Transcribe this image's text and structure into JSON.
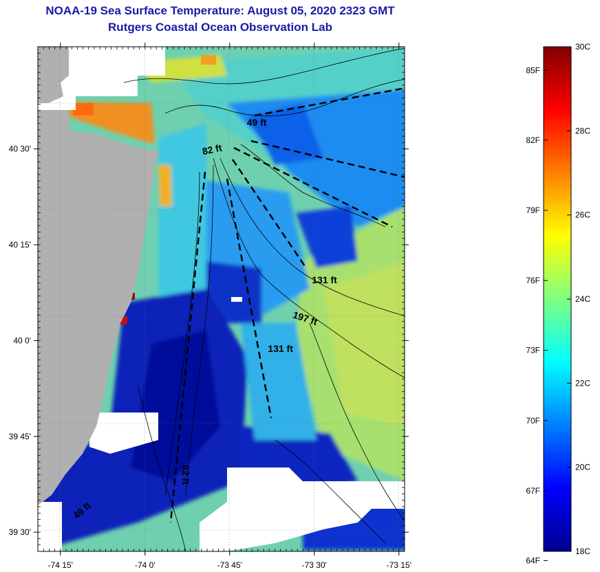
{
  "title": "NOAA-19 Sea Surface Temperature:  August 05, 2020 2323 GMT",
  "subtitle": "Rutgers Coastal Ocean Observation Lab",
  "lat_ticks": [
    {
      "label": "40 30'",
      "lat": 40.5
    },
    {
      "label": "40 15'",
      "lat": 40.25
    },
    {
      "label": "40 0'",
      "lat": 40.0
    },
    {
      "label": "39 45'",
      "lat": 39.75
    },
    {
      "label": "39 30'",
      "lat": 39.5
    }
  ],
  "lon_ticks": [
    {
      "label": "-74 15'",
      "lon": -74.25
    },
    {
      "label": "-74 0'",
      "lon": -74.0
    },
    {
      "label": "-73 45'",
      "lon": -73.75
    },
    {
      "label": "-73 30'",
      "lon": -73.5
    },
    {
      "label": "-73 15'",
      "lon": -73.25
    }
  ],
  "depth_labels": [
    {
      "text": "49 ft",
      "lon": -73.67,
      "lat": 40.56
    },
    {
      "text": "82 ft",
      "lon": -73.8,
      "lat": 40.49
    },
    {
      "text": "131 ft",
      "lon": -73.47,
      "lat": 40.15
    },
    {
      "text": "197 ft",
      "lon": -73.53,
      "lat": 40.05
    },
    {
      "text": "131 ft",
      "lon": -73.6,
      "lat": 39.97
    },
    {
      "text": "82 ft",
      "lon": -73.89,
      "lat": 39.65
    },
    {
      "text": "49 ft",
      "lon": -74.18,
      "lat": 39.55
    }
  ],
  "colorbar": {
    "f_labels": [
      {
        "text": "85F",
        "temp_c": 29.44
      },
      {
        "text": "82F",
        "temp_c": 27.78
      },
      {
        "text": "79F",
        "temp_c": 26.11
      },
      {
        "text": "76F",
        "temp_c": 24.44
      },
      {
        "text": "73F",
        "temp_c": 22.78
      },
      {
        "text": "70F",
        "temp_c": 21.11
      },
      {
        "text": "67F",
        "temp_c": 19.44
      },
      {
        "text": "64F",
        "temp_c": 17.78
      }
    ],
    "c_labels": [
      {
        "text": "30C",
        "temp_c": 30
      },
      {
        "text": "28C",
        "temp_c": 28
      },
      {
        "text": "26C",
        "temp_c": 26
      },
      {
        "text": "24C",
        "temp_c": 24
      },
      {
        "text": "22C",
        "temp_c": 22
      },
      {
        "text": "20C",
        "temp_c": 20
      },
      {
        "text": "18C",
        "temp_c": 18
      }
    ],
    "range_c": [
      18,
      30
    ]
  },
  "colors": {
    "title": "#1a1aa8",
    "land": "#b0b0b0",
    "no_data": "#ffffff"
  }
}
